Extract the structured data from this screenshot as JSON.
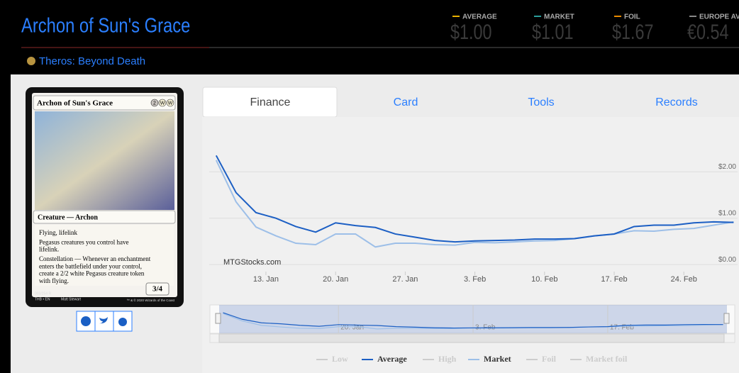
{
  "header": {
    "title": "Archon of Sun's Grace",
    "set": "Theros: Beyond Death",
    "prices": [
      {
        "label": "AVERAGE",
        "value": "$1.00",
        "color": "#e8b000"
      },
      {
        "label": "MARKET",
        "value": "$1.01",
        "color": "#2a9d9a"
      },
      {
        "label": "FOIL",
        "value": "$1.67",
        "color": "#e88a00"
      },
      {
        "label": "EUROPE AVG",
        "value": "€0.54",
        "color": "#888888"
      }
    ]
  },
  "card": {
    "name": "Archon of Sun's Grace",
    "mana_cost": [
      "2",
      "W",
      "W"
    ],
    "type_line": "Creature — Archon",
    "rules": [
      "Flying, lifelink",
      "Pegasus creatures you control have",
      "lifelink.",
      "Constellation — Whenever an enchantment",
      "enters the battlefield under your control,",
      "create a 2/2 white Pegasus creature token",
      "with flying."
    ],
    "power_toughness": "3/4",
    "collector": "003/254 R",
    "set_lang": "THB • EN",
    "artist": "Matt Stewart",
    "copyright": "™ & © 2020 Wizards of the Coast"
  },
  "tabs": [
    "Finance",
    "Card",
    "Tools",
    "Records"
  ],
  "chart_data": {
    "type": "line",
    "watermark": "MTGStocks.com",
    "x": [
      8,
      10,
      12,
      14,
      16,
      18,
      20,
      22,
      24,
      26,
      28,
      30,
      32,
      34,
      36,
      38,
      40,
      42,
      44,
      46,
      48,
      50,
      52,
      54,
      56,
      58,
      60
    ],
    "xlim": [
      7.3,
      60.4
    ],
    "xticks": [
      {
        "value": 13,
        "label": "13. Jan"
      },
      {
        "value": 20,
        "label": "20. Jan"
      },
      {
        "value": 27,
        "label": "27. Jan"
      },
      {
        "value": 34,
        "label": "3. Feb"
      },
      {
        "value": 41,
        "label": "10. Feb"
      },
      {
        "value": 48,
        "label": "17. Feb"
      },
      {
        "value": 55,
        "label": "24. Feb"
      }
    ],
    "ylim": [
      -0.15,
      2.95
    ],
    "yticks": [
      {
        "value": 0,
        "label": "$0.00"
      },
      {
        "value": 1,
        "label": "$1.00"
      },
      {
        "value": 2,
        "label": "$2.00"
      }
    ],
    "grid": true,
    "series": [
      {
        "name": "Low",
        "color": "#cccccc",
        "hidden": true
      },
      {
        "name": "Average",
        "color": "#1c5fc4",
        "values": [
          2.35,
          1.55,
          1.12,
          1.0,
          0.82,
          0.7,
          0.9,
          0.84,
          0.8,
          0.66,
          0.59,
          0.52,
          0.49,
          0.51,
          0.52,
          0.53,
          0.55,
          0.55,
          0.56,
          0.62,
          0.66,
          0.82,
          0.85,
          0.85,
          0.9,
          0.92,
          0.91
        ]
      },
      {
        "name": "High",
        "color": "#cccccc",
        "hidden": true
      },
      {
        "name": "Market",
        "color": "#9dbfe8",
        "values": [
          2.25,
          1.35,
          0.81,
          0.62,
          0.46,
          0.43,
          0.66,
          0.66,
          0.38,
          0.46,
          0.46,
          0.43,
          0.42,
          0.48,
          0.47,
          0.49,
          0.51,
          0.52,
          0.56,
          0.62,
          0.66,
          0.73,
          0.72,
          0.76,
          0.78,
          0.85,
          0.92
        ]
      },
      {
        "name": "Foil",
        "color": "#cccccc",
        "hidden": true
      },
      {
        "name": "Market foil",
        "color": "#cccccc",
        "hidden": true
      }
    ]
  }
}
